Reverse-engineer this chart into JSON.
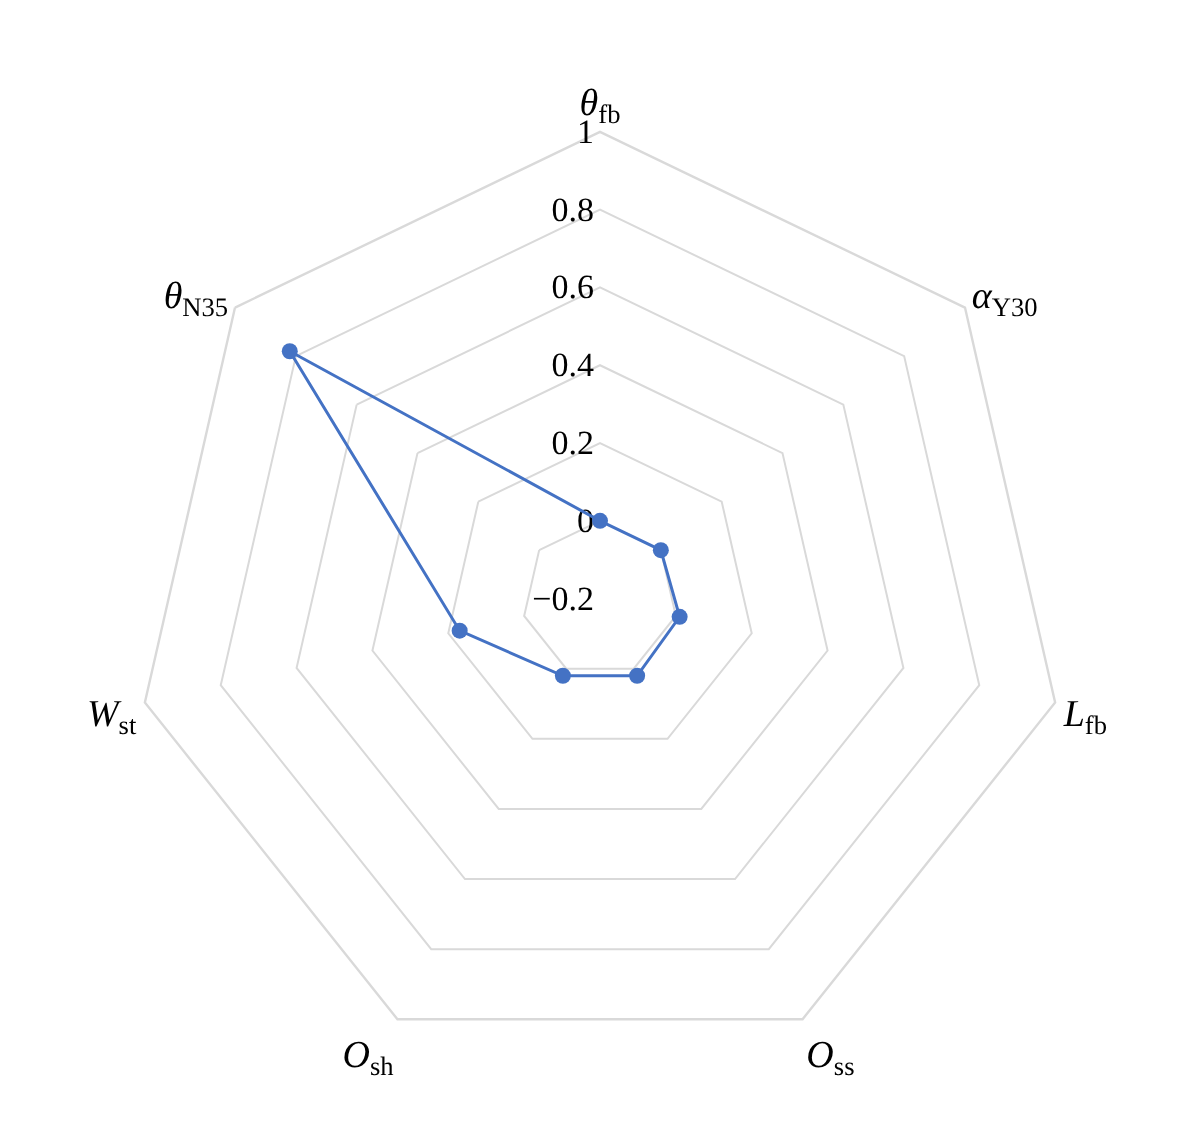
{
  "chart_data": {
    "type": "radar",
    "categories": [
      "θ$_{fb}$",
      "α$_{Y30}$",
      "L$_{fb}$",
      "O$_{ss}$",
      "O$_{sh}$",
      "W$_{st}$",
      "θ$_{N35}$"
    ],
    "series": [
      {
        "color": "#4472c4",
        "values": [
          0,
          0,
          0.01,
          0.02,
          0.02,
          0.17,
          0.82
        ]
      }
    ],
    "ylim": [
      -0.2,
      1
    ],
    "yticks": [
      {
        "value": -0.2,
        "label": "−0.2"
      },
      0,
      0.2,
      0.4,
      0.6,
      0.8,
      1
    ],
    "grid": true,
    "marker": "circle",
    "line_style": "solid"
  }
}
